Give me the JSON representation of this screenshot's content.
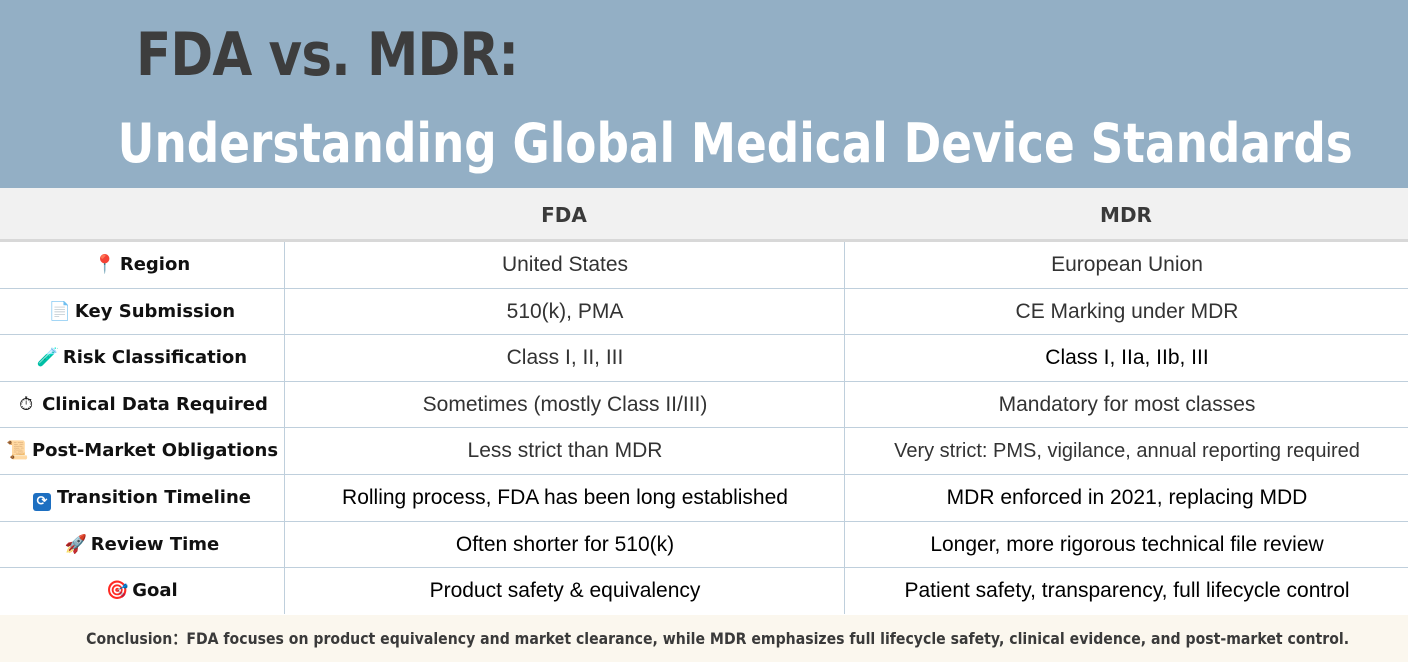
{
  "title": {
    "line1": "FDA vs. MDR:",
    "line2": "Understanding Global Medical Device Standards"
  },
  "columns": [
    "",
    "FDA",
    "MDR"
  ],
  "rows": [
    {
      "icon": "📍",
      "icon_name": "pin-icon",
      "label": "Region",
      "fda": "United States",
      "mdr": "European Union"
    },
    {
      "icon": "📄",
      "icon_name": "document-icon",
      "label": "Key Submission",
      "fda": "510(k), PMA",
      "mdr": "CE Marking under MDR"
    },
    {
      "icon": "🧪",
      "icon_name": "test-tube-icon",
      "label": "Risk Classification",
      "fda": "Class I, II, III",
      "mdr": "Class I, IIa, IIb, III"
    },
    {
      "icon": "⏱",
      "icon_name": "stopwatch-icon",
      "label": "Clinical Data Required",
      "fda": "Sometimes (mostly Class II/III)",
      "mdr": "Mandatory for most classes"
    },
    {
      "icon": "📜",
      "icon_name": "scroll-icon",
      "label": "Post-Market Obligations",
      "fda": "Less strict than MDR",
      "mdr": "Very strict: PMS, vigilance, annual reporting required"
    },
    {
      "icon": "🔄",
      "icon_name": "refresh-icon",
      "label": "Transition Timeline",
      "fda": "Rolling process, FDA has been long established",
      "mdr": "MDR enforced in 2021, replacing MDD"
    },
    {
      "icon": "🚀",
      "icon_name": "rocket-icon",
      "label": "Review Time",
      "fda": "Often shorter for 510(k)",
      "mdr": "Longer, more rigorous technical file review"
    },
    {
      "icon": "🎯",
      "icon_name": "target-icon",
      "label": "Goal",
      "fda": "Product safety & equivalency",
      "mdr": "Patient safety, transparency, full lifecycle control"
    }
  ],
  "conclusion": "Conclusion：FDA focuses on product equivalency and market clearance, while MDR emphasizes full lifecycle safety, clinical evidence, and post-market control.",
  "colors": {
    "header_bg": "#93afc5",
    "title_dark": "#3d3d3d",
    "title_light": "#ffffff",
    "grid_line": "#bfcfdc",
    "conclusion_bg": "#fbf7ee"
  }
}
